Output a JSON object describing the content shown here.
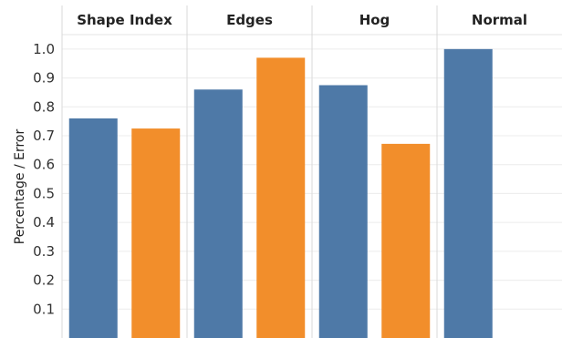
{
  "chart_data": {
    "type": "bar",
    "ylabel": "Percentage / Error",
    "ylim": [
      0,
      1.05
    ],
    "yticks": [
      0.1,
      0.2,
      0.3,
      0.4,
      0.5,
      0.6,
      0.7,
      0.8,
      0.9,
      1.0
    ],
    "yticks_labels": [
      "0.1",
      "0.2",
      "0.3",
      "0.4",
      "0.5",
      "0.6",
      "0.7",
      "0.8",
      "0.9",
      "1.0"
    ],
    "grid": true,
    "colors": [
      "#4e79a7",
      "#f28e2b"
    ],
    "panels": [
      {
        "title": "Shape Index",
        "values": [
          0.76,
          0.725
        ]
      },
      {
        "title": "Edges",
        "values": [
          0.86,
          0.97
        ]
      },
      {
        "title": "Hog",
        "values": [
          0.875,
          0.672
        ]
      },
      {
        "title": "Normal",
        "values": [
          1.0
        ]
      }
    ]
  }
}
